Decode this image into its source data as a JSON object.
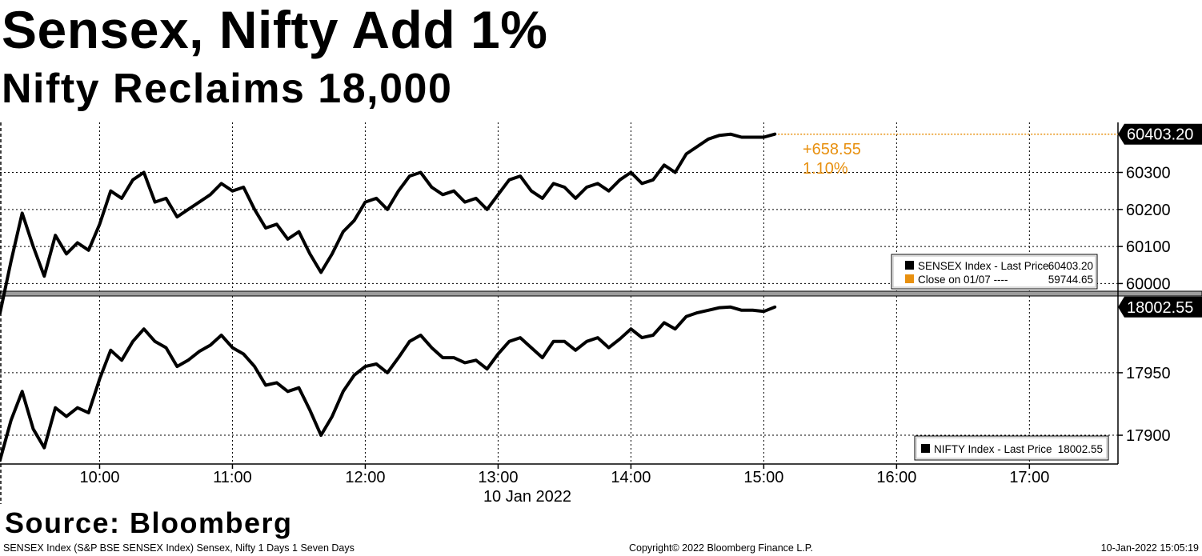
{
  "headline": "Sensex, Nifty Add 1%",
  "subheadline": "Nifty Reclaims 18,000",
  "source": "Source: Bloomberg",
  "footer": {
    "left": "SENSEX Index (S&P BSE SENSEX Index) Sensex, Nifty 1 Days 1 Seven Days",
    "center": "Copyright© 2022 Bloomberg Finance L.P.",
    "right": "10-Jan-2022 15:05:19"
  },
  "colors": {
    "line": "#000000",
    "close": "#e8900f",
    "grid": "#000000"
  },
  "chart_data": [
    {
      "type": "line",
      "name": "SENSEX Index - Last Price",
      "x": [
        "09:15",
        "09:20",
        "09:25",
        "09:30",
        "09:35",
        "09:40",
        "09:45",
        "09:50",
        "09:55",
        "10:00",
        "10:05",
        "10:10",
        "10:15",
        "10:20",
        "10:25",
        "10:30",
        "10:35",
        "10:40",
        "10:45",
        "10:50",
        "10:55",
        "11:00",
        "11:05",
        "11:10",
        "11:15",
        "11:20",
        "11:25",
        "11:30",
        "11:35",
        "11:40",
        "11:45",
        "11:50",
        "11:55",
        "12:00",
        "12:05",
        "12:10",
        "12:15",
        "12:20",
        "12:25",
        "12:30",
        "12:35",
        "12:40",
        "12:45",
        "12:50",
        "12:55",
        "13:00",
        "13:05",
        "13:10",
        "13:15",
        "13:20",
        "13:25",
        "13:30",
        "13:35",
        "13:40",
        "13:45",
        "13:50",
        "13:55",
        "14:00",
        "14:05",
        "14:10",
        "14:15",
        "14:20",
        "14:25",
        "14:30",
        "14:35",
        "14:40",
        "14:45",
        "14:50",
        "14:55",
        "15:00",
        "15:05"
      ],
      "values": [
        59920,
        60060,
        60190,
        60100,
        60020,
        60130,
        60080,
        60110,
        60090,
        60160,
        60250,
        60230,
        60280,
        60300,
        60220,
        60230,
        60180,
        60200,
        60220,
        60240,
        60270,
        60250,
        60260,
        60200,
        60150,
        60160,
        60120,
        60140,
        60080,
        60030,
        60080,
        60140,
        60170,
        60220,
        60230,
        60200,
        60250,
        60290,
        60300,
        60260,
        60240,
        60250,
        60220,
        60230,
        60200,
        60240,
        60280,
        60290,
        60250,
        60230,
        60270,
        60260,
        60230,
        60260,
        60270,
        60250,
        60280,
        60300,
        60270,
        60280,
        60320,
        60300,
        60350,
        60370,
        60390,
        60400,
        60403.2,
        60395,
        60395,
        60395,
        60403.2
      ],
      "close": {
        "label": "Close on 01/07",
        "value": 59744.65
      },
      "last_price_label": "60403.20",
      "change": "+658.55",
      "change_pct": "1.10%",
      "yticks": [
        "60000",
        "60100",
        "60200",
        "60300"
      ],
      "ylim": [
        59975,
        60435
      ],
      "legend": [
        {
          "label": "SENSEX Index - Last Price",
          "value": "60403.20"
        },
        {
          "label": "Close on 01/07 ----",
          "value": "59744.65"
        }
      ]
    },
    {
      "type": "line",
      "name": "NIFTY Index - Last Price",
      "x": [
        "09:15",
        "09:20",
        "09:25",
        "09:30",
        "09:35",
        "09:40",
        "09:45",
        "09:50",
        "09:55",
        "10:00",
        "10:05",
        "10:10",
        "10:15",
        "10:20",
        "10:25",
        "10:30",
        "10:35",
        "10:40",
        "10:45",
        "10:50",
        "10:55",
        "11:00",
        "11:05",
        "11:10",
        "11:15",
        "11:20",
        "11:25",
        "11:30",
        "11:35",
        "11:40",
        "11:45",
        "11:50",
        "11:55",
        "12:00",
        "12:05",
        "12:10",
        "12:15",
        "12:20",
        "12:25",
        "12:30",
        "12:35",
        "12:40",
        "12:45",
        "12:50",
        "12:55",
        "13:00",
        "13:05",
        "13:10",
        "13:15",
        "13:20",
        "13:25",
        "13:30",
        "13:35",
        "13:40",
        "13:45",
        "13:50",
        "13:55",
        "14:00",
        "14:05",
        "14:10",
        "14:15",
        "14:20",
        "14:25",
        "14:30",
        "14:35",
        "14:40",
        "14:45",
        "14:50",
        "14:55",
        "15:00",
        "15:05"
      ],
      "values": [
        17880,
        17912,
        17935,
        17905,
        17890,
        17922,
        17915,
        17922,
        17918,
        17945,
        17968,
        17960,
        17975,
        17985,
        17975,
        17970,
        17955,
        17960,
        17967,
        17972,
        17980,
        17970,
        17965,
        17955,
        17940,
        17942,
        17935,
        17938,
        17920,
        17900,
        17915,
        17935,
        17948,
        17955,
        17957,
        17950,
        17962,
        17975,
        17980,
        17970,
        17962,
        17962,
        17958,
        17960,
        17953,
        17965,
        17975,
        17978,
        17970,
        17962,
        17975,
        17975,
        17968,
        17975,
        17978,
        17970,
        17977,
        17985,
        17978,
        17980,
        17990,
        17985,
        17995,
        17998,
        18000,
        18002,
        18002.55,
        18000,
        18000,
        17999,
        18002.55
      ],
      "last_price_label": "18002.55",
      "yticks": [
        "17900",
        "17950"
      ],
      "ylim": [
        17877,
        18012
      ],
      "legend": [
        {
          "label": "NIFTY Index - Last Price",
          "value": "18002.55"
        }
      ]
    }
  ],
  "x_axis": {
    "ticks": [
      "10:00",
      "11:00",
      "12:00",
      "13:00",
      "14:00",
      "15:00",
      "16:00",
      "17:00"
    ],
    "date_label": "10 Jan 2022"
  }
}
